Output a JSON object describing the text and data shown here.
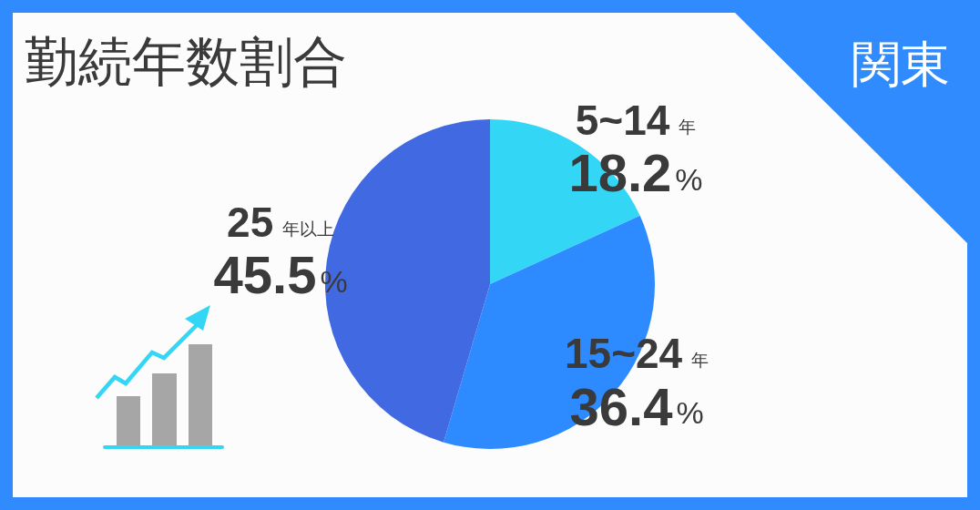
{
  "chart_data": {
    "type": "pie",
    "title": "勤続年数割合",
    "annotations": [
      "関東"
    ],
    "categories": [
      "5~14年",
      "15~24年",
      "25年以上"
    ],
    "values": [
      18.2,
      36.4,
      45.5
    ],
    "colors": [
      "#33d7f5",
      "#2e8bff",
      "#4169e1"
    ],
    "value_labels": [
      "18.2%",
      "36.4%",
      "45.5%"
    ]
  }
}
